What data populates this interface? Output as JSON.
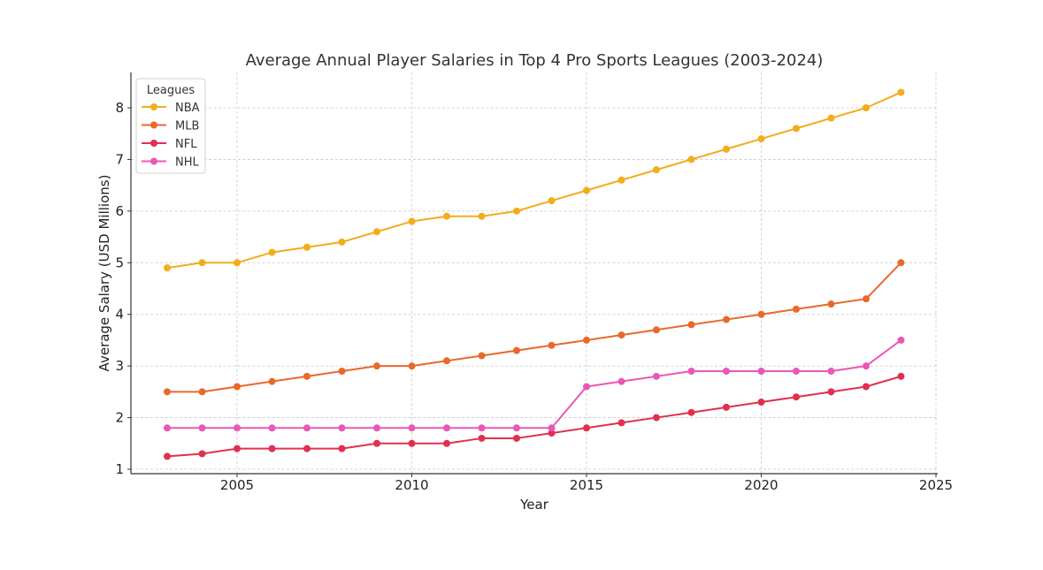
{
  "chart_data": {
    "type": "line",
    "title": "Average Annual Player Salaries in Top 4 Pro Sports Leagues (2003-2024)",
    "xlabel": "Year",
    "ylabel": "Average Salary (USD Millions)",
    "xlim": [
      2002,
      2025
    ],
    "ylim": [
      0.9,
      8.7
    ],
    "xticks": [
      2005,
      2010,
      2015,
      2020,
      2025
    ],
    "yticks": [
      1,
      2,
      3,
      4,
      5,
      6,
      7,
      8
    ],
    "grid": true,
    "legend": {
      "title": "Leagues",
      "placement": "top-left"
    },
    "x": [
      2003,
      2004,
      2005,
      2006,
      2007,
      2008,
      2009,
      2010,
      2011,
      2012,
      2013,
      2014,
      2015,
      2016,
      2017,
      2018,
      2019,
      2020,
      2021,
      2022,
      2023,
      2024
    ],
    "series": [
      {
        "name": "NBA",
        "color": "#f2ac1c",
        "values": [
          4.9,
          5.0,
          5.0,
          5.2,
          5.3,
          5.4,
          5.6,
          5.8,
          5.9,
          5.9,
          6.0,
          6.2,
          6.4,
          6.6,
          6.8,
          7.0,
          7.2,
          7.4,
          7.6,
          7.8,
          8.0,
          8.3
        ]
      },
      {
        "name": "MLB",
        "color": "#e8692a",
        "values": [
          2.5,
          2.5,
          2.6,
          2.7,
          2.8,
          2.9,
          3.0,
          3.0,
          3.1,
          3.2,
          3.3,
          3.4,
          3.5,
          3.6,
          3.7,
          3.8,
          3.9,
          4.0,
          4.1,
          4.2,
          4.3,
          5.0
        ]
      },
      {
        "name": "NFL",
        "color": "#e0304e",
        "values": [
          1.25,
          1.3,
          1.4,
          1.4,
          1.4,
          1.4,
          1.5,
          1.5,
          1.5,
          1.6,
          1.6,
          1.7,
          1.8,
          1.9,
          2.0,
          2.1,
          2.2,
          2.3,
          2.4,
          2.5,
          2.6,
          2.8
        ]
      },
      {
        "name": "NHL",
        "color": "#e858b8",
        "values": [
          1.8,
          1.8,
          1.8,
          1.8,
          1.8,
          1.8,
          1.8,
          1.8,
          1.8,
          1.8,
          1.8,
          1.8,
          2.6,
          2.7,
          2.8,
          2.9,
          2.9,
          2.9,
          2.9,
          2.9,
          3.0,
          3.5
        ]
      }
    ]
  }
}
